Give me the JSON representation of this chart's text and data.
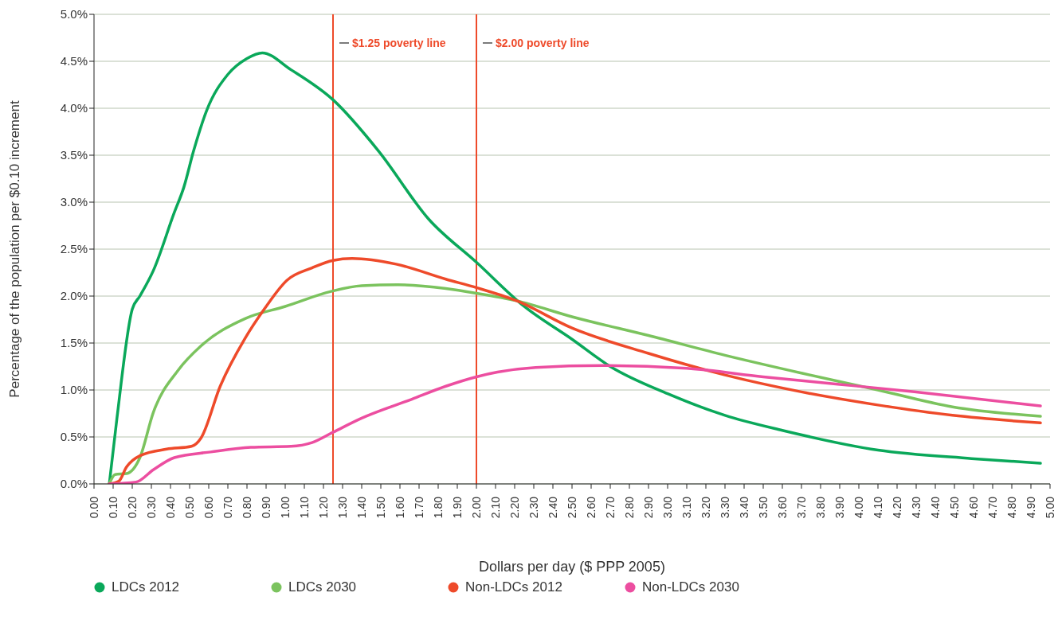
{
  "chart_data": {
    "type": "line",
    "xlabel": "Dollars per day ($ PPP 2005)",
    "ylabel": "Percentage of the population per $0.10 increment",
    "xlim": [
      0,
      5
    ],
    "ylim": [
      0,
      5
    ],
    "xticks": [
      {
        "value": 0,
        "label": "0.00"
      },
      {
        "value": 0.1,
        "label": "0.10"
      },
      {
        "value": 0.2,
        "label": "0.20"
      },
      {
        "value": 0.3,
        "label": "0.30"
      },
      {
        "value": 0.4,
        "label": "0.40"
      },
      {
        "value": 0.5,
        "label": "0.50"
      },
      {
        "value": 0.6,
        "label": "0.60"
      },
      {
        "value": 0.7,
        "label": "0.70"
      },
      {
        "value": 0.8,
        "label": "0.80"
      },
      {
        "value": 0.9,
        "label": "0.90"
      },
      {
        "value": 1,
        "label": "1.00"
      },
      {
        "value": 1.1,
        "label": "1.10"
      },
      {
        "value": 1.2,
        "label": "1.20"
      },
      {
        "value": 1.3,
        "label": "1.30"
      },
      {
        "value": 1.4,
        "label": "1.40"
      },
      {
        "value": 1.5,
        "label": "1.50"
      },
      {
        "value": 1.6,
        "label": "1.60"
      },
      {
        "value": 1.7,
        "label": "1.70"
      },
      {
        "value": 1.8,
        "label": "1.80"
      },
      {
        "value": 1.9,
        "label": "1.90"
      },
      {
        "value": 2,
        "label": "2.00"
      },
      {
        "value": 2.1,
        "label": "2.10"
      },
      {
        "value": 2.2,
        "label": "2.20"
      },
      {
        "value": 2.3,
        "label": "2.30"
      },
      {
        "value": 2.4,
        "label": "2.40"
      },
      {
        "value": 2.5,
        "label": "2.50"
      },
      {
        "value": 2.6,
        "label": "2.60"
      },
      {
        "value": 2.7,
        "label": "2.70"
      },
      {
        "value": 2.8,
        "label": "2.80"
      },
      {
        "value": 2.9,
        "label": "2.90"
      },
      {
        "value": 3,
        "label": "3.00"
      },
      {
        "value": 3.1,
        "label": "3.10"
      },
      {
        "value": 3.2,
        "label": "3.20"
      },
      {
        "value": 3.3,
        "label": "3.30"
      },
      {
        "value": 3.4,
        "label": "3.40"
      },
      {
        "value": 3.5,
        "label": "3.50"
      },
      {
        "value": 3.6,
        "label": "3.60"
      },
      {
        "value": 3.7,
        "label": "3.70"
      },
      {
        "value": 3.8,
        "label": "3.80"
      },
      {
        "value": 3.9,
        "label": "3.90"
      },
      {
        "value": 4,
        "label": "4.00"
      },
      {
        "value": 4.1,
        "label": "4.10"
      },
      {
        "value": 4.2,
        "label": "4.20"
      },
      {
        "value": 4.3,
        "label": "4.30"
      },
      {
        "value": 4.4,
        "label": "4.40"
      },
      {
        "value": 4.5,
        "label": "4.50"
      },
      {
        "value": 4.6,
        "label": "4.60"
      },
      {
        "value": 4.7,
        "label": "4.70"
      },
      {
        "value": 4.8,
        "label": "4.80"
      },
      {
        "value": 4.9,
        "label": "4.90"
      },
      {
        "value": 5,
        "label": "5.00"
      }
    ],
    "yticks": [
      {
        "value": 0,
        "label": "0.0%"
      },
      {
        "value": 0.5,
        "label": "0.5%"
      },
      {
        "value": 1,
        "label": "1.0%"
      },
      {
        "value": 1.5,
        "label": "1.5%"
      },
      {
        "value": 2,
        "label": "2.0%"
      },
      {
        "value": 2.5,
        "label": "2.5%"
      },
      {
        "value": 3,
        "label": "3.0%"
      },
      {
        "value": 3.5,
        "label": "3.5%"
      },
      {
        "value": 4,
        "label": "4.0%"
      },
      {
        "value": 4.5,
        "label": "4.5%"
      },
      {
        "value": 5,
        "label": "5.0%"
      }
    ],
    "grid": "y",
    "legend": "bottom",
    "ref_lines": [
      {
        "axis": "x",
        "value": 1.25,
        "label": "$1.25 poverty line",
        "color": "#ee4a2a"
      },
      {
        "axis": "x",
        "value": 2,
        "label": "$2.00 poverty line",
        "color": "#ee4a2a"
      }
    ],
    "series": [
      {
        "name": "LDCs 2012",
        "color": "#0aa85a",
        "x": [
          0.08,
          0.12,
          0.2,
          0.24,
          0.31,
          0.42,
          0.47,
          0.52,
          0.59,
          0.7,
          0.8,
          0.88,
          1.03,
          1.25,
          1.49,
          1.75,
          2.0,
          2.25,
          2.5,
          2.7,
          3.0,
          3.3,
          3.6,
          4.1,
          4.59,
          4.95
        ],
        "values": [
          0,
          0.7,
          1.86,
          2.0,
          2.27,
          2.89,
          3.16,
          3.54,
          3.98,
          4.36,
          4.53,
          4.59,
          4.41,
          4.09,
          3.54,
          2.82,
          2.36,
          1.89,
          1.54,
          1.25,
          0.96,
          0.73,
          0.57,
          0.36,
          0.27,
          0.22
        ]
      },
      {
        "name": "LDCs 2030",
        "color": "#7bc35e",
        "x": [
          0.08,
          0.11,
          0.17,
          0.24,
          0.31,
          0.44,
          0.56,
          0.79,
          1.0,
          1.24,
          1.4,
          1.59,
          1.84,
          2.0,
          2.21,
          2.5,
          2.9,
          3.3,
          3.7,
          4.1,
          4.49,
          4.95
        ],
        "values": [
          0,
          0.1,
          0.11,
          0.28,
          0.76,
          1.21,
          1.47,
          1.76,
          1.89,
          2.05,
          2.11,
          2.12,
          2.08,
          2.03,
          1.95,
          1.78,
          1.58,
          1.37,
          1.18,
          1.0,
          0.82,
          0.72
        ]
      },
      {
        "name": "Non-LDCs 2012",
        "color": "#ee4a2a",
        "x": [
          0.08,
          0.13,
          0.17,
          0.24,
          0.38,
          0.51,
          0.56,
          0.66,
          0.79,
          0.89,
          1.01,
          1.14,
          1.25,
          1.35,
          1.58,
          1.84,
          2.0,
          2.21,
          2.5,
          2.9,
          3.3,
          3.7,
          4.1,
          4.49,
          4.95
        ],
        "values": [
          0,
          0.03,
          0.18,
          0.3,
          0.37,
          0.4,
          0.49,
          1.04,
          1.55,
          1.86,
          2.17,
          2.3,
          2.38,
          2.4,
          2.34,
          2.18,
          2.09,
          1.95,
          1.66,
          1.39,
          1.16,
          0.98,
          0.84,
          0.73,
          0.65
        ]
      },
      {
        "name": "Non-LDCs 2030",
        "color": "#ec4ea0",
        "x": [
          0.08,
          0.22,
          0.31,
          0.42,
          0.61,
          0.82,
          1.03,
          1.14,
          1.25,
          1.4,
          1.66,
          1.84,
          2.0,
          2.11,
          2.31,
          2.66,
          3.1,
          3.5,
          3.9,
          4.29,
          4.95
        ],
        "values": [
          0,
          0.02,
          0.15,
          0.28,
          0.34,
          0.39,
          0.4,
          0.44,
          0.55,
          0.7,
          0.9,
          1.04,
          1.14,
          1.19,
          1.24,
          1.26,
          1.23,
          1.14,
          1.06,
          0.98,
          0.83
        ]
      }
    ]
  }
}
